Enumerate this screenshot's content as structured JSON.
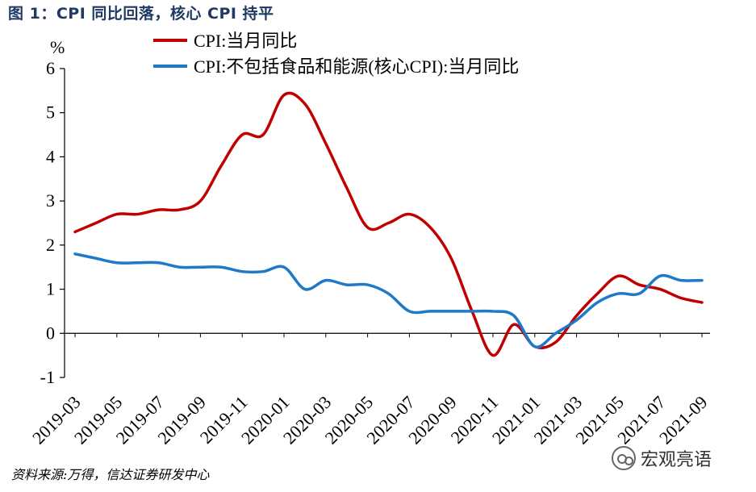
{
  "figure_title": "图 1：CPI 同比回落，核心 CPI 持平",
  "source_note": "资料来源:万得，信达证券研发中心",
  "watermark_text": "宏观亮语",
  "colors": {
    "cpi": "#c00000",
    "core": "#1f78c8",
    "title": "#1f3864"
  },
  "chart_data": {
    "type": "line",
    "title": "",
    "ylabel": "%",
    "ylim": [
      -1,
      6
    ],
    "yticks": [
      "-1",
      "0",
      "1",
      "2",
      "3",
      "4",
      "5",
      "6"
    ],
    "xtick_labels": [
      "2019-03",
      "2019-05",
      "2019-07",
      "2019-09",
      "2019-11",
      "2020-01",
      "2020-03",
      "2020-05",
      "2020-07",
      "2020-09",
      "2020-11",
      "2021-01",
      "2021-03",
      "2021-05",
      "2021-07",
      "2021-09"
    ],
    "x": [
      "2019-03",
      "2019-04",
      "2019-05",
      "2019-06",
      "2019-07",
      "2019-08",
      "2019-09",
      "2019-10",
      "2019-11",
      "2019-12",
      "2020-01",
      "2020-02",
      "2020-03",
      "2020-04",
      "2020-05",
      "2020-06",
      "2020-07",
      "2020-08",
      "2020-09",
      "2020-10",
      "2020-11",
      "2020-12",
      "2021-01",
      "2021-02",
      "2021-03",
      "2021-04",
      "2021-05",
      "2021-06",
      "2021-07",
      "2021-08",
      "2021-09"
    ],
    "legend_position": "top",
    "series": [
      {
        "name": "CPI:当月同比",
        "key": "cpi",
        "values": [
          2.3,
          2.5,
          2.7,
          2.7,
          2.8,
          2.8,
          3.0,
          3.8,
          4.5,
          4.5,
          5.4,
          5.2,
          4.3,
          3.3,
          2.4,
          2.5,
          2.7,
          2.4,
          1.7,
          0.5,
          -0.5,
          0.2,
          -0.3,
          -0.2,
          0.4,
          0.9,
          1.3,
          1.1,
          1.0,
          0.8,
          0.7
        ]
      },
      {
        "name": "CPI:不包括食品和能源(核心CPI):当月同比",
        "key": "core",
        "values": [
          1.8,
          1.7,
          1.6,
          1.6,
          1.6,
          1.5,
          1.5,
          1.5,
          1.4,
          1.4,
          1.5,
          1.0,
          1.2,
          1.1,
          1.1,
          0.9,
          0.5,
          0.5,
          0.5,
          0.5,
          0.5,
          0.4,
          -0.3,
          0.0,
          0.3,
          0.7,
          0.9,
          0.9,
          1.3,
          1.2,
          1.2
        ]
      }
    ]
  }
}
